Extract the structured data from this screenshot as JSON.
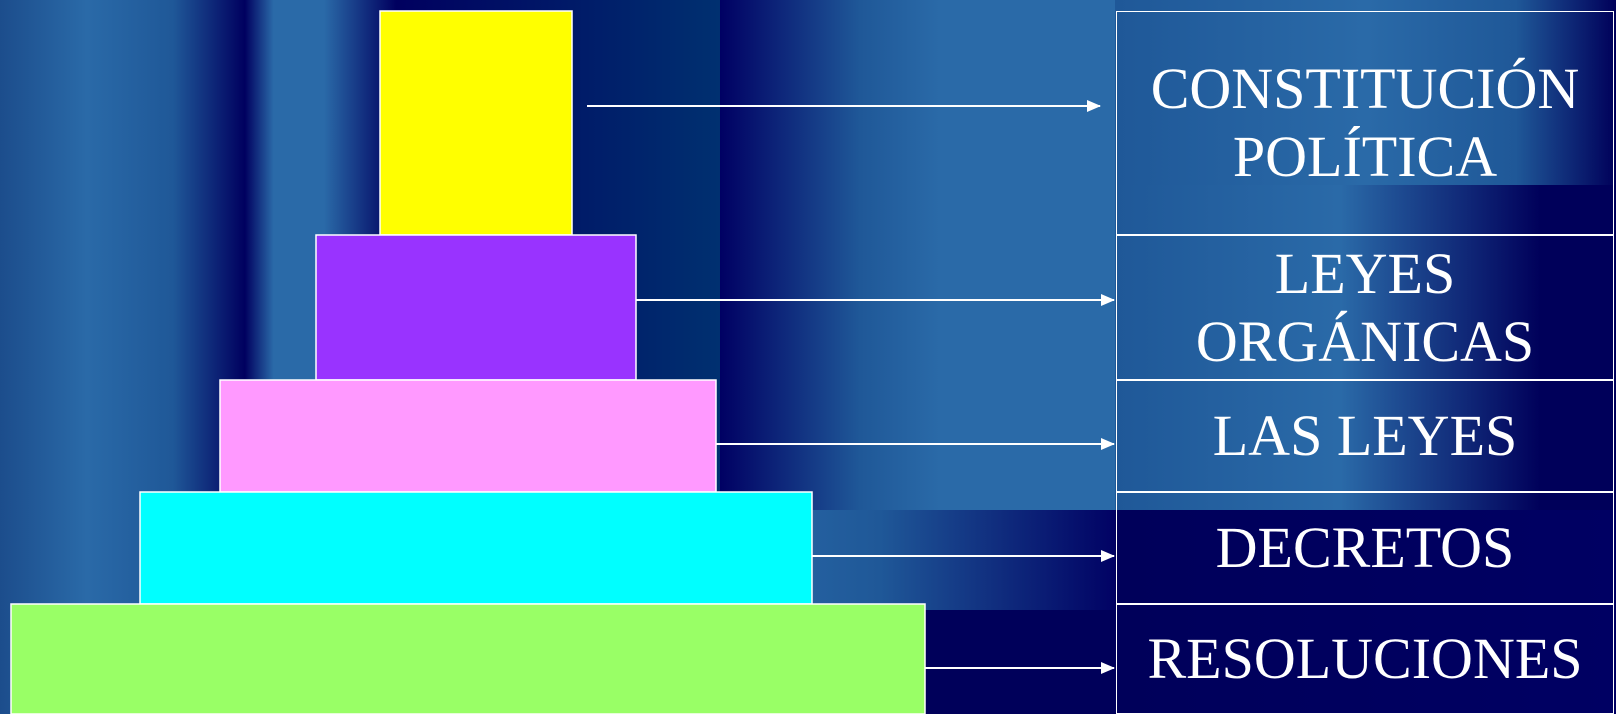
{
  "diagram": {
    "levels": [
      {
        "label": "CONSTITUCIÓN\nPOLÍTICA",
        "color": "#ffff00"
      },
      {
        "label": "LEYES\nORGÁNICAS",
        "color": "#9933ff"
      },
      {
        "label": "LAS LEYES",
        "color": "#ff99ff"
      },
      {
        "label": "DECRETOS",
        "color": "#00ffff"
      },
      {
        "label": "RESOLUCIONES",
        "color": "#99ff66"
      }
    ],
    "arrow_color": "#ffffff",
    "border_color": "#ffffff"
  }
}
